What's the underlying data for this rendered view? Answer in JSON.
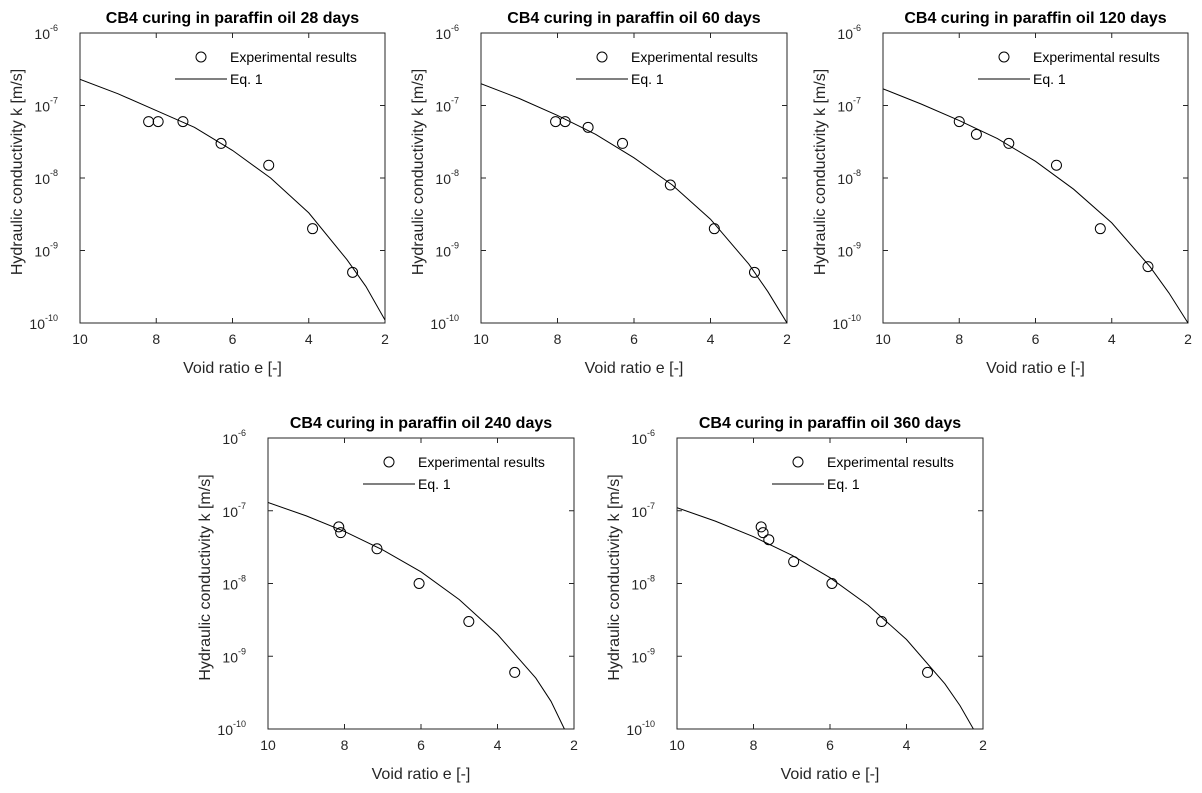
{
  "chart_data": [
    {
      "type": "scatter",
      "title": "CB4 curing in paraffin oil 28 days",
      "xlabel": "Void ratio e [-]",
      "ylabel": "Hydraulic conductivity k [m/s]",
      "xlim": [
        10,
        2
      ],
      "x_reversed": true,
      "ylim": [
        1e-10,
        1e-06
      ],
      "yscale": "log",
      "x_ticks": [
        "10",
        "8",
        "6",
        "4",
        "2"
      ],
      "y_tick_base": "10",
      "y_tick_exponents": [
        "-10",
        "-9",
        "-8",
        "-7",
        "-6"
      ],
      "legend": "top-right",
      "grid": false,
      "series": [
        {
          "name": "Experimental results",
          "marker": "circle",
          "x": [
            8.2,
            7.95,
            7.3,
            6.3,
            5.05,
            3.9,
            2.85
          ],
          "y": [
            6e-08,
            6e-08,
            6e-08,
            3e-08,
            1.5e-08,
            2e-09,
            5e-10
          ]
        },
        {
          "name": "Eq. 1",
          "line": "solid",
          "x": [
            10,
            9,
            8,
            7,
            6,
            5,
            4,
            3,
            2.5,
            2
          ],
          "y": [
            2.3e-07,
            1.45e-07,
            8.5e-08,
            5e-08,
            2.4e-08,
            1e-08,
            3.3e-09,
            7.5e-10,
            3.2e-10,
            1.1e-10
          ]
        }
      ]
    },
    {
      "type": "scatter",
      "title": "CB4 curing in paraffin oil 60 days",
      "xlabel": "Void ratio e [-]",
      "ylabel": "Hydraulic conductivity k [m/s]",
      "xlim": [
        10,
        2
      ],
      "x_reversed": true,
      "ylim": [
        1e-10,
        1e-06
      ],
      "yscale": "log",
      "x_ticks": [
        "10",
        "8",
        "6",
        "4",
        "2"
      ],
      "y_tick_base": "10",
      "y_tick_exponents": [
        "-10",
        "-9",
        "-8",
        "-7",
        "-6"
      ],
      "legend": "top-right",
      "grid": false,
      "series": [
        {
          "name": "Experimental results",
          "marker": "circle",
          "x": [
            8.05,
            7.8,
            7.2,
            6.3,
            5.05,
            3.9,
            2.85
          ],
          "y": [
            6e-08,
            6e-08,
            5e-08,
            3e-08,
            8e-09,
            2e-09,
            5e-10
          ]
        },
        {
          "name": "Eq. 1",
          "line": "solid",
          "x": [
            10,
            9,
            8,
            7,
            6,
            5,
            4,
            3,
            2.5,
            2
          ],
          "y": [
            2e-07,
            1.25e-07,
            7.3e-08,
            4e-08,
            1.9e-08,
            8e-09,
            2.7e-09,
            6.5e-10,
            2.7e-10,
            1e-10
          ]
        }
      ]
    },
    {
      "type": "scatter",
      "title": "CB4 curing in paraffin oil 120 days",
      "xlabel": "Void ratio e [-]",
      "ylabel": "Hydraulic conductivity k [m/s]",
      "xlim": [
        10,
        2
      ],
      "x_reversed": true,
      "ylim": [
        1e-10,
        1e-06
      ],
      "yscale": "log",
      "x_ticks": [
        "10",
        "8",
        "6",
        "4",
        "2"
      ],
      "y_tick_base": "10",
      "y_tick_exponents": [
        "-10",
        "-9",
        "-8",
        "-7",
        "-6"
      ],
      "legend": "top-right",
      "grid": false,
      "series": [
        {
          "name": "Experimental results",
          "marker": "circle",
          "x": [
            8.0,
            7.55,
            6.7,
            5.45,
            4.3,
            3.05
          ],
          "y": [
            6e-08,
            4e-08,
            3e-08,
            1.5e-08,
            2e-09,
            6e-10
          ]
        },
        {
          "name": "Eq. 1",
          "line": "solid",
          "x": [
            10,
            9,
            8,
            7,
            6,
            5,
            4,
            3,
            2.5,
            2
          ],
          "y": [
            1.7e-07,
            1.05e-07,
            6.2e-08,
            3.5e-08,
            1.7e-08,
            7e-09,
            2.4e-09,
            6e-10,
            2.6e-10,
            1e-10
          ]
        }
      ]
    },
    {
      "type": "scatter",
      "title": "CB4 curing in paraffin oil 240 days",
      "xlabel": "Void ratio e [-]",
      "ylabel": "Hydraulic conductivity k [m/s]",
      "xlim": [
        10,
        2
      ],
      "x_reversed": true,
      "ylim": [
        1e-10,
        1e-06
      ],
      "yscale": "log",
      "x_ticks": [
        "10",
        "8",
        "6",
        "4",
        "2"
      ],
      "y_tick_base": "10",
      "y_tick_exponents": [
        "-10",
        "-9",
        "-8",
        "-7",
        "-6"
      ],
      "legend": "top-right",
      "grid": false,
      "series": [
        {
          "name": "Experimental results",
          "marker": "circle",
          "x": [
            8.15,
            8.1,
            7.15,
            6.05,
            4.75,
            3.55
          ],
          "y": [
            6e-08,
            5e-08,
            3e-08,
            1e-08,
            3e-09,
            6e-10
          ]
        },
        {
          "name": "Eq. 1",
          "line": "solid",
          "x": [
            10,
            9,
            8,
            7,
            6,
            5,
            4,
            3,
            2.6,
            2.25
          ],
          "y": [
            1.3e-07,
            8.5e-08,
            5.2e-08,
            2.9e-08,
            1.45e-08,
            6e-09,
            2e-09,
            5e-10,
            2.4e-10,
            1e-10
          ]
        }
      ]
    },
    {
      "type": "scatter",
      "title": "CB4 curing in paraffin oil 360 days",
      "xlabel": "Void ratio e [-]",
      "ylabel": "Hydraulic conductivity k [m/s]",
      "xlim": [
        10,
        2
      ],
      "x_reversed": true,
      "ylim": [
        1e-10,
        1e-06
      ],
      "yscale": "log",
      "x_ticks": [
        "10",
        "8",
        "6",
        "4",
        "2"
      ],
      "y_tick_base": "10",
      "y_tick_exponents": [
        "-10",
        "-9",
        "-8",
        "-7",
        "-6"
      ],
      "legend": "top-right",
      "grid": false,
      "series": [
        {
          "name": "Experimental results",
          "marker": "circle",
          "x": [
            7.8,
            7.75,
            7.6,
            6.95,
            5.95,
            4.65,
            3.45
          ],
          "y": [
            6e-08,
            5e-08,
            4e-08,
            2e-08,
            1e-08,
            3e-09,
            6e-10
          ]
        },
        {
          "name": "Eq. 1",
          "line": "solid",
          "x": [
            10,
            9,
            8,
            7,
            6,
            5,
            4,
            3,
            2.6,
            2.25
          ],
          "y": [
            1.1e-07,
            7.2e-08,
            4.4e-08,
            2.45e-08,
            1.2e-08,
            5e-09,
            1.7e-09,
            4.2e-10,
            2.1e-10,
            1e-10
          ]
        }
      ]
    }
  ]
}
